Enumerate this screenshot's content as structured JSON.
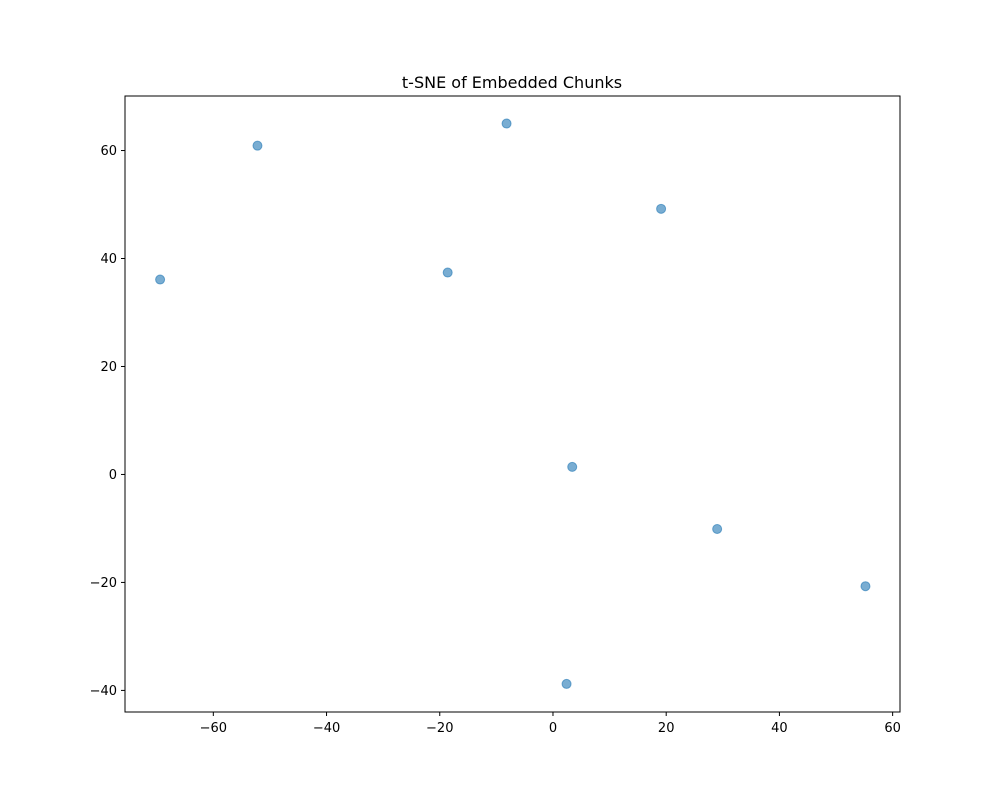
{
  "chart_data": {
    "type": "scatter",
    "title": "t-SNE of Embedded Chunks",
    "xlabel": "",
    "ylabel": "",
    "xlim": [
      -75.6,
      61.3
    ],
    "ylim": [
      -44.0,
      70.1
    ],
    "x_ticks": [
      -60,
      -40,
      -20,
      0,
      20,
      40,
      60
    ],
    "y_ticks": [
      -40,
      -20,
      0,
      20,
      40,
      60
    ],
    "grid": false,
    "series": [
      {
        "color": "#1f77b4",
        "opacity": 0.6,
        "points": [
          {
            "x": -8.2,
            "y": 65.0
          },
          {
            "x": -52.2,
            "y": 60.9
          },
          {
            "x": 19.1,
            "y": 49.2
          },
          {
            "x": -18.6,
            "y": 37.4
          },
          {
            "x": -69.4,
            "y": 36.1
          },
          {
            "x": 3.4,
            "y": 1.4
          },
          {
            "x": 29.0,
            "y": -10.1
          },
          {
            "x": 55.2,
            "y": -20.7
          },
          {
            "x": 2.4,
            "y": -38.8
          }
        ]
      }
    ]
  }
}
